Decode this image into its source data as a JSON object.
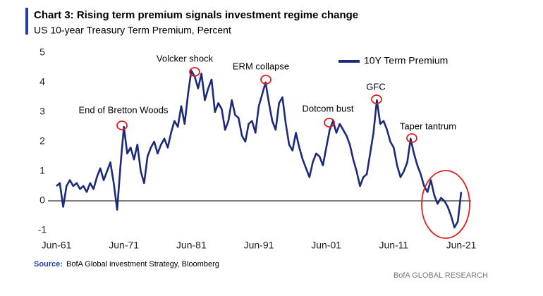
{
  "chart_data": {
    "type": "line",
    "title": "Chart 3: Rising term premium signals investment regime change",
    "subtitle": "US 10-year Treasury Term Premium, Percent",
    "x": [
      "Jun-61",
      "Dec-61",
      "Jun-62",
      "Dec-62",
      "Jun-63",
      "Dec-63",
      "Jun-64",
      "Dec-64",
      "Jun-65",
      "Dec-65",
      "Jun-66",
      "Dec-66",
      "Jun-67",
      "Dec-67",
      "Jun-68",
      "Dec-68",
      "Jun-69",
      "Dec-69",
      "Jun-70",
      "Dec-70",
      "Jun-71",
      "Dec-71",
      "Jun-72",
      "Dec-72",
      "Jun-73",
      "Dec-73",
      "Jun-74",
      "Dec-74",
      "Jun-75",
      "Dec-75",
      "Jun-76",
      "Dec-76",
      "Jun-77",
      "Dec-77",
      "Jun-78",
      "Dec-78",
      "Jun-79",
      "Dec-79",
      "Jun-80",
      "Dec-80",
      "Jun-81",
      "Dec-81",
      "Jun-82",
      "Dec-82",
      "Jun-83",
      "Dec-83",
      "Jun-84",
      "Dec-84",
      "Jun-85",
      "Dec-85",
      "Jun-86",
      "Dec-86",
      "Jun-87",
      "Dec-87",
      "Jun-88",
      "Dec-88",
      "Jun-89",
      "Dec-89",
      "Jun-90",
      "Dec-90",
      "Jun-91",
      "Dec-91",
      "Jun-92",
      "Dec-92",
      "Jun-93",
      "Dec-93",
      "Jun-94",
      "Dec-94",
      "Jun-95",
      "Dec-95",
      "Jun-96",
      "Dec-96",
      "Jun-97",
      "Dec-97",
      "Jun-98",
      "Dec-98",
      "Jun-99",
      "Dec-99",
      "Jun-00",
      "Dec-00",
      "Jun-01",
      "Dec-01",
      "Jun-02",
      "Dec-02",
      "Jun-03",
      "Dec-03",
      "Jun-04",
      "Dec-04",
      "Jun-05",
      "Dec-05",
      "Jun-06",
      "Dec-06",
      "Jun-07",
      "Dec-07",
      "Jun-08",
      "Dec-08",
      "Jun-09",
      "Dec-09",
      "Jun-10",
      "Dec-10",
      "Jun-11",
      "Dec-11",
      "Jun-12",
      "Dec-12",
      "Jun-13",
      "Dec-13",
      "Jun-14",
      "Dec-14",
      "Jun-15",
      "Dec-15",
      "Jun-16",
      "Dec-16",
      "Jun-17",
      "Dec-17",
      "Jun-18",
      "Dec-18",
      "Jun-19",
      "Dec-19",
      "Jun-20",
      "Dec-20",
      "Jun-21"
    ],
    "series": [
      {
        "name": "10Y Term Premium",
        "color": "#1c2a7a",
        "values": [
          0.5,
          0.6,
          -0.2,
          0.5,
          0.7,
          0.5,
          0.6,
          0.4,
          0.5,
          0.3,
          0.6,
          0.4,
          0.8,
          1.1,
          0.7,
          1.0,
          1.3,
          0.6,
          -0.3,
          1.2,
          2.5,
          1.6,
          1.8,
          1.4,
          1.9,
          1.0,
          0.6,
          1.5,
          1.8,
          2.0,
          1.6,
          1.9,
          2.1,
          1.8,
          2.3,
          2.7,
          2.5,
          3.2,
          2.6,
          3.6,
          4.4,
          4.2,
          3.8,
          4.3,
          3.4,
          3.8,
          4.1,
          3.0,
          3.3,
          3.1,
          2.4,
          2.7,
          3.4,
          2.9,
          2.8,
          2.2,
          2.0,
          2.6,
          2.7,
          2.3,
          3.2,
          3.6,
          4.0,
          3.3,
          2.7,
          2.4,
          3.3,
          3.5,
          2.6,
          1.9,
          1.7,
          2.3,
          1.8,
          1.4,
          1.1,
          0.8,
          1.3,
          1.6,
          1.5,
          1.2,
          1.8,
          2.4,
          2.7,
          2.3,
          2.6,
          2.4,
          2.2,
          1.9,
          1.4,
          1.0,
          0.5,
          0.8,
          0.9,
          1.6,
          2.3,
          3.4,
          2.6,
          2.7,
          2.4,
          2.0,
          1.8,
          1.2,
          0.8,
          1.0,
          1.3,
          2.1,
          1.6,
          1.2,
          0.9,
          0.5,
          0.3,
          0.7,
          0.2,
          -0.1,
          0.1,
          0.0,
          -0.2,
          -0.5,
          -0.9,
          -0.7,
          0.3
        ]
      }
    ],
    "ylim": [
      -1,
      5
    ],
    "yticks": [
      -1,
      0,
      1,
      2,
      3,
      4,
      5
    ],
    "xtick_every": 20,
    "annotations": [
      "End of Bretton  Woods",
      "Volcker shock",
      "ERM collapse",
      "Dotcom  bust",
      "GFC",
      "Taper tantrum"
    ],
    "source_label": "Source:",
    "source": "BofA Global investment Strategy, Bloomberg",
    "footer": "BofA GLOBAL RESEARCH"
  }
}
